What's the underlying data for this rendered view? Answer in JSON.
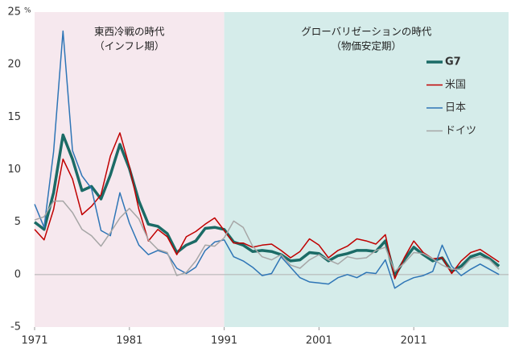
{
  "chart_data": {
    "type": "line",
    "y_unit": "%",
    "periods": [
      {
        "label": [
          "東西冷戦の時代",
          "（インフレ期）"
        ],
        "start": 1971,
        "end": 1991,
        "color": "#f6e8ee"
      },
      {
        "label": [
          "グローバリゼーションの時代",
          "（物価安定期）"
        ],
        "start": 1991,
        "end": 2021,
        "color": "#d5ecea"
      }
    ],
    "x": [
      1971,
      1972,
      1973,
      1974,
      1975,
      1976,
      1977,
      1978,
      1979,
      1980,
      1981,
      1982,
      1983,
      1984,
      1985,
      1986,
      1987,
      1988,
      1989,
      1990,
      1991,
      1992,
      1993,
      1994,
      1995,
      1996,
      1997,
      1998,
      1999,
      2000,
      2001,
      2002,
      2003,
      2004,
      2005,
      2006,
      2007,
      2008,
      2009,
      2010,
      2011,
      2012,
      2013,
      2014,
      2015,
      2016,
      2017,
      2018,
      2019,
      2020
    ],
    "series": [
      {
        "name": "G7",
        "color": "#1b6b66",
        "width": 3.5,
        "values": [
          5.0,
          4.3,
          7.8,
          13.3,
          11.0,
          8.0,
          8.4,
          7.2,
          9.5,
          12.4,
          10.1,
          7.0,
          4.8,
          4.6,
          3.9,
          2.1,
          2.8,
          3.2,
          4.4,
          4.5,
          4.3,
          3.1,
          2.8,
          2.2,
          2.3,
          2.2,
          1.9,
          1.3,
          1.4,
          2.1,
          2.0,
          1.3,
          1.8,
          2.0,
          2.3,
          2.3,
          2.2,
          3.2,
          -0.1,
          1.4,
          2.6,
          1.9,
          1.3,
          1.6,
          0.3,
          0.8,
          1.7,
          2.0,
          1.5,
          0.8
        ]
      },
      {
        "name": "米国",
        "color": "#c00000",
        "width": 1.5,
        "values": [
          4.3,
          3.3,
          6.2,
          11.0,
          9.1,
          5.7,
          6.5,
          7.6,
          11.3,
          13.5,
          10.3,
          6.2,
          3.2,
          4.3,
          3.6,
          1.9,
          3.6,
          4.1,
          4.8,
          5.4,
          4.2,
          3.0,
          3.0,
          2.6,
          2.8,
          2.9,
          2.3,
          1.6,
          2.2,
          3.4,
          2.8,
          1.6,
          2.3,
          2.7,
          3.4,
          3.2,
          2.9,
          3.8,
          -0.4,
          1.6,
          3.2,
          2.1,
          1.5,
          1.6,
          0.1,
          1.3,
          2.1,
          2.4,
          1.8,
          1.2
        ]
      },
      {
        "name": "日本",
        "color": "#2e75b6",
        "width": 1.5,
        "values": [
          6.7,
          4.5,
          11.7,
          23.2,
          11.8,
          9.4,
          8.2,
          4.2,
          3.7,
          7.8,
          4.9,
          2.8,
          1.9,
          2.3,
          2.0,
          0.6,
          0.1,
          0.7,
          2.3,
          3.1,
          3.3,
          1.7,
          1.3,
          0.7,
          -0.1,
          0.1,
          1.7,
          0.7,
          -0.3,
          -0.7,
          -0.8,
          -0.9,
          -0.3,
          0.0,
          -0.3,
          0.2,
          0.1,
          1.4,
          -1.3,
          -0.7,
          -0.3,
          -0.1,
          0.3,
          2.8,
          0.8,
          -0.1,
          0.5,
          1.0,
          0.5,
          0.0
        ]
      },
      {
        "name": "ドイツ",
        "color": "#a6a6a6",
        "width": 1.5,
        "values": [
          5.2,
          5.5,
          7.0,
          7.0,
          5.9,
          4.3,
          3.7,
          2.7,
          4.0,
          5.4,
          6.3,
          5.3,
          3.3,
          2.4,
          2.1,
          -0.1,
          0.2,
          1.3,
          2.8,
          2.7,
          3.5,
          5.1,
          4.5,
          2.7,
          1.7,
          1.4,
          1.9,
          0.9,
          0.6,
          1.4,
          1.9,
          1.4,
          1.0,
          1.7,
          1.5,
          1.6,
          2.3,
          2.6,
          0.3,
          1.1,
          2.1,
          2.0,
          1.5,
          0.9,
          0.5,
          0.5,
          1.5,
          1.7,
          1.4,
          0.5
        ]
      }
    ],
    "xlim": [
      1971,
      2021
    ],
    "xticks": [
      1971,
      1981,
      1991,
      2001,
      2011
    ],
    "ylim": [
      -5,
      25
    ],
    "yticks": [
      -5,
      0,
      5,
      10,
      15,
      20,
      25
    ],
    "zero_line": true,
    "legend": "upper right"
  }
}
